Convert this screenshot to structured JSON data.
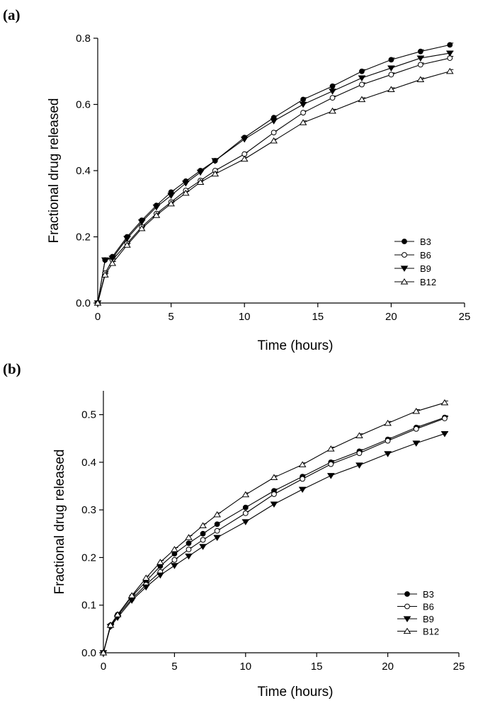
{
  "chart_data": [
    {
      "type": "line",
      "panel_label": "(a)",
      "xlabel": "Time (hours)",
      "ylabel": "Fractional drug released",
      "xlim": [
        0,
        25
      ],
      "ylim": [
        0,
        0.8
      ],
      "xticks": [
        0,
        5,
        10,
        15,
        20,
        25
      ],
      "xtick_labels": [
        "0",
        "5",
        "10",
        "15",
        "20",
        "25"
      ],
      "yticks": [
        0,
        0.2,
        0.4,
        0.6,
        0.8
      ],
      "ytick_labels": [
        "0.0",
        "0.2",
        "0.4",
        "0.6",
        "0.8"
      ],
      "grid": false,
      "legend_position": "bottom-right",
      "x": [
        0,
        0.5,
        1,
        2,
        3,
        4,
        5,
        6,
        7,
        8,
        10,
        12,
        14,
        16,
        18,
        20,
        22,
        24
      ],
      "series": [
        {
          "name": "B3",
          "marker": "filled-circle",
          "values": [
            0.0,
            0.13,
            0.14,
            0.2,
            0.25,
            0.295,
            0.335,
            0.368,
            0.4,
            0.43,
            0.5,
            0.56,
            0.615,
            0.655,
            0.7,
            0.735,
            0.76,
            0.78
          ]
        },
        {
          "name": "B6",
          "marker": "open-circle",
          "values": [
            0.0,
            0.09,
            0.13,
            0.18,
            0.23,
            0.27,
            0.305,
            0.34,
            0.37,
            0.4,
            0.45,
            0.515,
            0.575,
            0.62,
            0.66,
            0.69,
            0.72,
            0.74
          ]
        },
        {
          "name": "B9",
          "marker": "filled-triangle-down",
          "values": [
            0.0,
            0.13,
            0.135,
            0.195,
            0.245,
            0.29,
            0.325,
            0.362,
            0.395,
            0.43,
            0.495,
            0.55,
            0.6,
            0.64,
            0.68,
            0.71,
            0.74,
            0.755
          ]
        },
        {
          "name": "B12",
          "marker": "open-triangle-up",
          "values": [
            0.0,
            0.085,
            0.12,
            0.175,
            0.225,
            0.265,
            0.3,
            0.332,
            0.365,
            0.39,
            0.435,
            0.49,
            0.545,
            0.58,
            0.615,
            0.645,
            0.675,
            0.7
          ]
        }
      ]
    },
    {
      "type": "line",
      "panel_label": "(b)",
      "xlabel": "Time (hours)",
      "ylabel": "Fractional drug released",
      "xlim": [
        0,
        25
      ],
      "ylim": [
        0,
        0.55
      ],
      "xticks": [
        0,
        5,
        10,
        15,
        20,
        25
      ],
      "xtick_labels": [
        "0",
        "5",
        "10",
        "15",
        "20",
        "25"
      ],
      "yticks": [
        0,
        0.1,
        0.2,
        0.3,
        0.4,
        0.5
      ],
      "ytick_labels": [
        "0.0",
        "0.1",
        "0.2",
        "0.3",
        "0.4",
        "0.5"
      ],
      "grid": false,
      "legend_position": "bottom-right",
      "x": [
        0,
        0.5,
        1,
        2,
        3,
        4,
        5,
        6,
        7,
        8,
        10,
        12,
        14,
        16,
        18,
        20,
        22,
        24
      ],
      "series": [
        {
          "name": "B3",
          "marker": "filled-circle",
          "values": [
            0.0,
            0.058,
            0.08,
            0.118,
            0.15,
            0.182,
            0.208,
            0.23,
            0.25,
            0.27,
            0.305,
            0.34,
            0.37,
            0.4,
            0.423,
            0.448,
            0.473,
            0.494
          ]
        },
        {
          "name": "B6",
          "marker": "open-circle",
          "values": [
            0.0,
            0.056,
            0.078,
            0.113,
            0.143,
            0.17,
            0.195,
            0.217,
            0.237,
            0.256,
            0.293,
            0.333,
            0.365,
            0.396,
            0.419,
            0.445,
            0.47,
            0.492
          ]
        },
        {
          "name": "B9",
          "marker": "filled-triangle-down",
          "values": [
            0.0,
            0.055,
            0.074,
            0.11,
            0.138,
            0.163,
            0.183,
            0.203,
            0.223,
            0.242,
            0.275,
            0.312,
            0.343,
            0.372,
            0.394,
            0.418,
            0.44,
            0.46
          ]
        },
        {
          "name": "B12",
          "marker": "open-triangle-up",
          "values": [
            0.0,
            0.058,
            0.08,
            0.12,
            0.157,
            0.19,
            0.217,
            0.242,
            0.267,
            0.29,
            0.332,
            0.368,
            0.395,
            0.428,
            0.456,
            0.482,
            0.507,
            0.525
          ]
        }
      ]
    }
  ]
}
